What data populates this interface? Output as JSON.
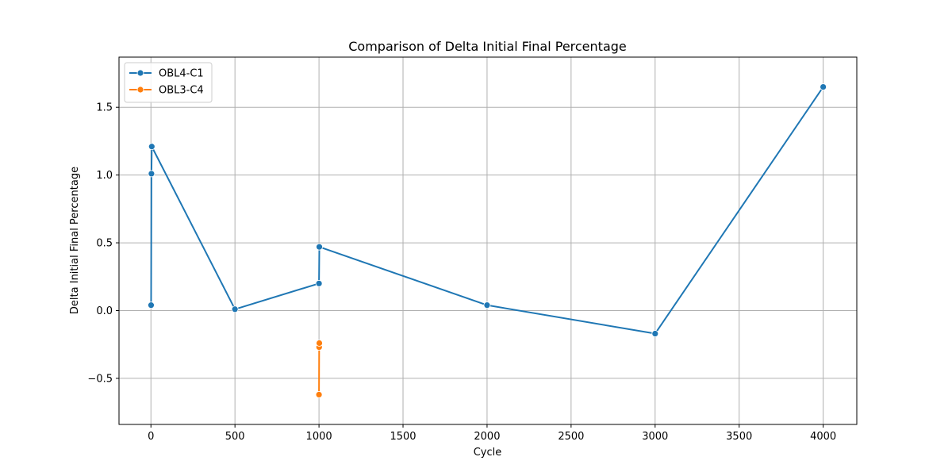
{
  "chart_data": {
    "type": "line",
    "title": "Comparison of Delta Initial Final Percentage",
    "xlabel": "Cycle",
    "ylabel": "Delta Initial Final Percentage",
    "xlim": [
      -190,
      4200
    ],
    "ylim": [
      -0.84,
      1.87
    ],
    "xticks": [
      0,
      500,
      1000,
      1500,
      2000,
      2500,
      3000,
      3500,
      4000
    ],
    "yticks": [
      -0.5,
      0.0,
      0.5,
      1.0,
      1.5
    ],
    "grid": true,
    "legend_position": "top-left",
    "series": [
      {
        "name": "OBL4-C1",
        "color": "#1f77b4",
        "marker": "circle",
        "points": [
          [
            1,
            0.04
          ],
          [
            3,
            1.01
          ],
          [
            5,
            1.21
          ],
          [
            500,
            0.01
          ],
          [
            1000,
            0.2
          ],
          [
            1002,
            0.47
          ],
          [
            2000,
            0.04
          ],
          [
            3000,
            -0.17
          ],
          [
            4000,
            1.65
          ]
        ]
      },
      {
        "name": "OBL3-C4",
        "color": "#ff7f0e",
        "marker": "circle",
        "points": [
          [
            1000,
            -0.62
          ],
          [
            1001,
            -0.27
          ],
          [
            1002,
            -0.24
          ]
        ]
      }
    ]
  }
}
